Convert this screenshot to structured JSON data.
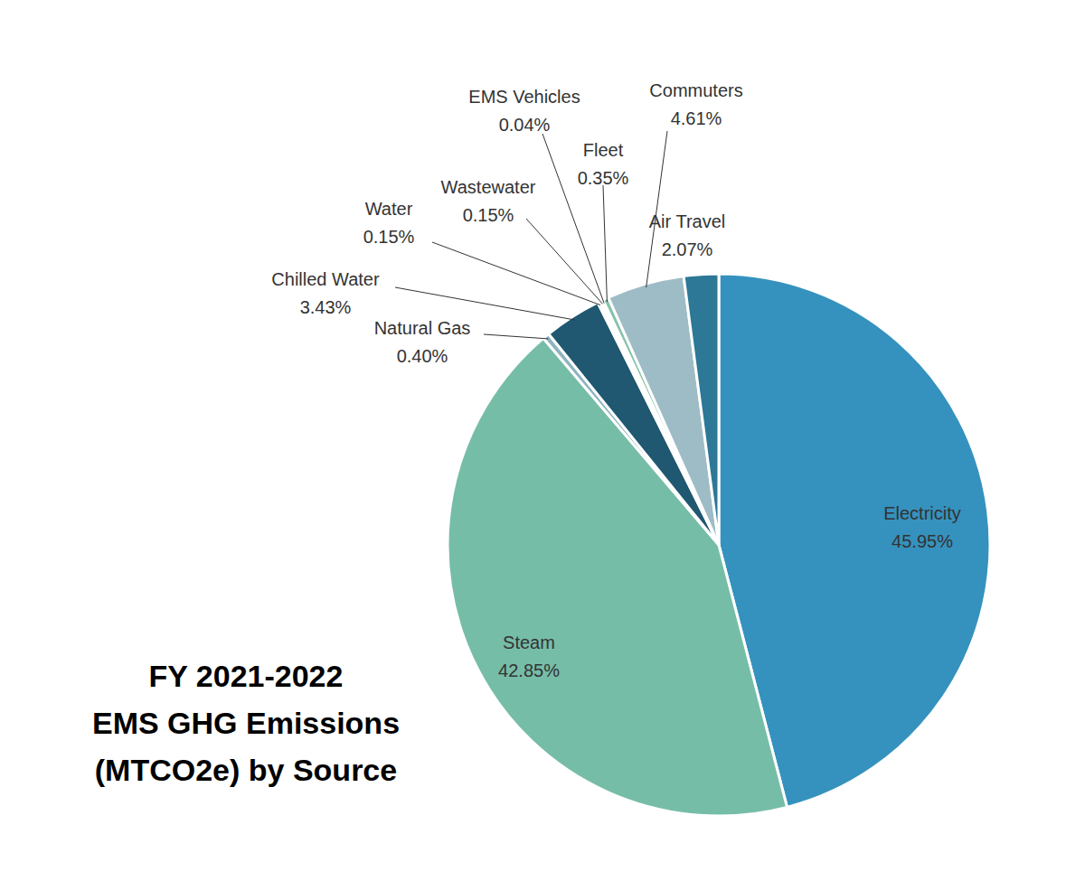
{
  "chart_data": {
    "type": "pie",
    "title": "FY 2021-2022\nEMS GHG Emissions\n(MTCO2e) by Source",
    "categories": [
      "Electricity",
      "Steam",
      "Natural Gas",
      "Chilled Water",
      "Water",
      "Wastewater",
      "EMS Vehicles",
      "Fleet",
      "Commuters",
      "Air Travel"
    ],
    "values": [
      45.95,
      42.85,
      0.4,
      3.43,
      0.15,
      0.15,
      0.04,
      0.35,
      4.61,
      2.07
    ],
    "value_labels": [
      "45.95%",
      "42.85%",
      "0.40%",
      "3.43%",
      "0.15%",
      "0.15%",
      "0.04%",
      "0.35%",
      "4.61%",
      "2.07%"
    ],
    "colors": [
      "#3592be",
      "#76bda8",
      "#8fb3c0",
      "#1f5870",
      "#4d9190",
      "#a8d6c6",
      "#5aa58c",
      "#86c2aa",
      "#9ebcc5",
      "#2c7896"
    ],
    "data_labels": true
  }
}
